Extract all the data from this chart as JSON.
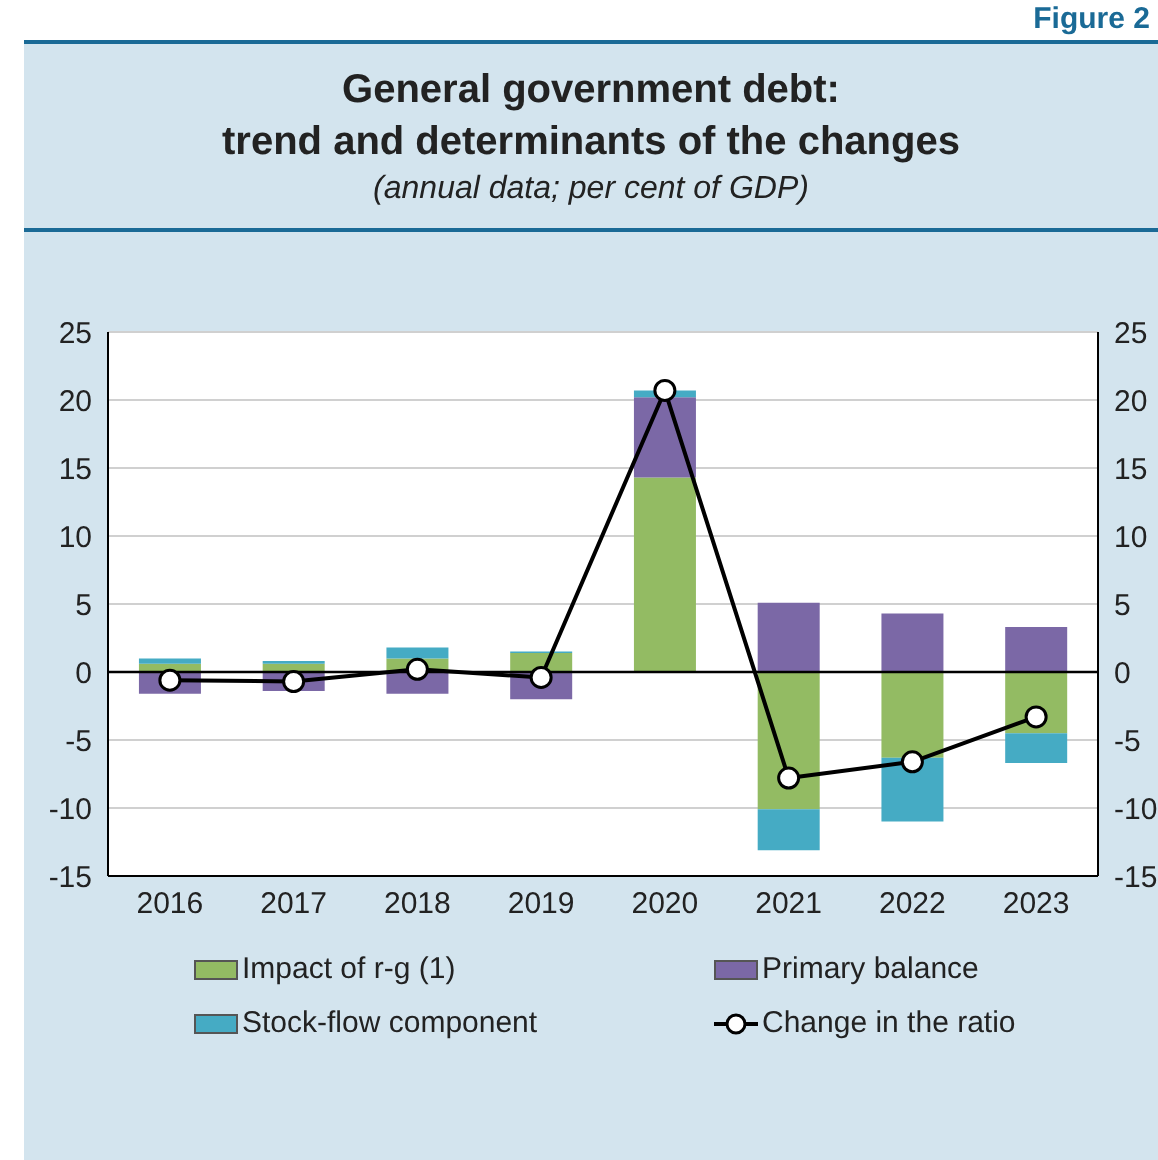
{
  "chart_data": {
    "type": "bar",
    "title": "General government debt:\ntrend and determinants of the changes",
    "subtitle": "(annual data; per cent of GDP)",
    "annotations": [
      "Figure 2"
    ],
    "categories": [
      "2016",
      "2017",
      "2018",
      "2019",
      "2020",
      "2021",
      "2022",
      "2023"
    ],
    "stacked": true,
    "series": [
      {
        "name": "Impact of r-g (1)",
        "color": "#93bb63",
        "values": [
          0.6,
          0.6,
          1.0,
          1.4,
          14.3,
          -10.1,
          -6.3,
          -4.5
        ]
      },
      {
        "name": "Primary balance",
        "color": "#7b68a6",
        "values": [
          -1.6,
          -1.4,
          -1.6,
          -2.0,
          5.9,
          5.1,
          4.3,
          3.3
        ]
      },
      {
        "name": "Stock-flow component",
        "color": "#45abc4",
        "values": [
          0.4,
          0.2,
          0.8,
          0.1,
          0.5,
          -3.0,
          -4.7,
          -2.2
        ]
      },
      {
        "name": "Change in the ratio",
        "type": "line",
        "color": "#000000",
        "marker": "circle",
        "values": [
          -0.6,
          -0.7,
          0.2,
          -0.4,
          20.7,
          -7.8,
          -6.6,
          -3.3
        ]
      }
    ],
    "ylim": [
      -15,
      25
    ],
    "yticks": [
      -15,
      -10,
      -5,
      0,
      5,
      10,
      15,
      20,
      25
    ],
    "y2lim": [
      -15,
      25
    ],
    "y2ticks": [
      -15,
      -10,
      -5,
      0,
      5,
      10,
      15,
      20,
      25
    ],
    "ref_lines": [
      {
        "axis": "y",
        "value": 0,
        "color": "#000000"
      }
    ],
    "grid": "y",
    "legend": "bottom"
  }
}
